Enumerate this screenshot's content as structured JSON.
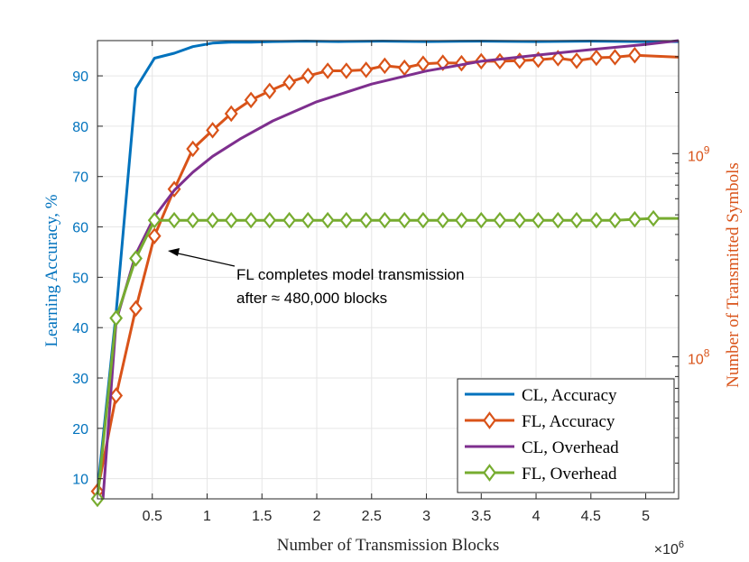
{
  "chart_data": {
    "type": "line",
    "title": "",
    "xlabel": "Number of Transmission Blocks",
    "x_multiplier_label": "×10",
    "x_multiplier_exp": "6",
    "ylabel_left": "Learning Accuracy, %",
    "ylabel_right": "Number of Transmitted Symbols",
    "xlim": [
      0,
      5.3
    ],
    "ylim_left": [
      6,
      97
    ],
    "ylim_right_log": [
      20000000.0,
      3600000000.0
    ],
    "x_ticks": [
      0.5,
      1,
      1.5,
      2,
      2.5,
      3,
      3.5,
      4,
      4.5,
      5
    ],
    "x_tick_labels": [
      "0.5",
      "1",
      "1.5",
      "2",
      "2.5",
      "3",
      "3.5",
      "4",
      "4.5",
      "5"
    ],
    "y_left_ticks": [
      10,
      20,
      30,
      40,
      50,
      60,
      70,
      80,
      90
    ],
    "y_left_tick_labels": [
      "10",
      "20",
      "30",
      "40",
      "50",
      "60",
      "70",
      "80",
      "90"
    ],
    "y_right_major_ticks": [
      100000000.0,
      1000000000.0
    ],
    "y_right_tick_bases": [
      "10",
      "10"
    ],
    "y_right_tick_exps": [
      "8",
      "9"
    ],
    "grid": true,
    "legend_position": "bottom-right",
    "series": [
      {
        "name": "CL, Accuracy",
        "axis": "left",
        "color": "#0072BD",
        "marker": "none",
        "x": [
          0,
          0.17,
          0.35,
          0.52,
          0.7,
          0.87,
          1.05,
          1.22,
          1.4,
          1.6,
          1.9,
          2.2,
          2.6,
          3,
          3.5,
          4,
          4.5,
          5,
          5.3
        ],
        "y": [
          7.5,
          43,
          87.5,
          93.5,
          94.5,
          95.8,
          96.5,
          96.7,
          96.7,
          96.8,
          96.9,
          96.8,
          96.9,
          96.8,
          96.9,
          96.8,
          96.9,
          96.8,
          96.8
        ]
      },
      {
        "name": "FL, Accuracy",
        "axis": "left",
        "color": "#D95319",
        "marker": "diamond",
        "x": [
          0,
          0.17,
          0.35,
          0.52,
          0.7,
          0.87,
          1.05,
          1.22,
          1.4,
          1.57,
          1.75,
          1.92,
          2.1,
          2.27,
          2.45,
          2.62,
          2.8,
          2.97,
          3.15,
          3.32,
          3.5,
          3.67,
          3.85,
          4.02,
          4.2,
          4.37,
          4.55,
          4.72,
          4.9,
          5.3
        ],
        "y": [
          7.5,
          26.5,
          43.8,
          58.2,
          67.5,
          75.5,
          79.2,
          82.5,
          85.2,
          87,
          88.7,
          90,
          91,
          91,
          91.2,
          92,
          91.6,
          92.4,
          92.6,
          92.5,
          92.9,
          92.9,
          93,
          93.2,
          93.5,
          93,
          93.6,
          93.7,
          94.1,
          93.7
        ],
        "marker_points": 29
      },
      {
        "name": "CL, Overhead",
        "axis": "right",
        "color": "#7E2F8E",
        "marker": "none",
        "x": [
          0.05,
          0.17,
          0.35,
          0.52,
          0.7,
          0.87,
          1.05,
          1.3,
          1.6,
          2,
          2.5,
          3,
          3.5,
          4,
          4.5,
          5,
          5.3
        ],
        "y": [
          20000000.0,
          150000000.0,
          320000000.0,
          490000000.0,
          660000000.0,
          810000000.0,
          970000000.0,
          1180000000.0,
          1450000000.0,
          1800000000.0,
          2200000000.0,
          2550000000.0,
          2850000000.0,
          3050000000.0,
          3250000000.0,
          3450000000.0,
          3600000000.0
        ]
      },
      {
        "name": "FL, Overhead",
        "axis": "right",
        "color": "#77AC30",
        "marker": "diamond",
        "x": [
          0,
          0.17,
          0.35,
          0.52,
          0.7,
          0.87,
          1.05,
          1.22,
          1.4,
          1.57,
          1.75,
          1.92,
          2.1,
          2.27,
          2.45,
          2.62,
          2.8,
          2.97,
          3.15,
          3.32,
          3.5,
          3.67,
          3.85,
          4.02,
          4.2,
          4.37,
          4.55,
          4.72,
          4.9,
          5.07,
          5.3
        ],
        "y": [
          20000000.0,
          155000000.0,
          305000000.0,
          470000000.0,
          470000000.0,
          470000000.0,
          470000000.0,
          470000000.0,
          470000000.0,
          470000000.0,
          470000000.0,
          470000000.0,
          470000000.0,
          470000000.0,
          470000000.0,
          470000000.0,
          470000000.0,
          470000000.0,
          470000000.0,
          470000000.0,
          470000000.0,
          470000000.0,
          470000000.0,
          470000000.0,
          470000000.0,
          470000000.0,
          470000000.0,
          470000000.0,
          475000000.0,
          480000000.0,
          480000000.0
        ],
        "marker_points": 30
      }
    ],
    "annotation": {
      "line1": "FL completes model transmission",
      "line2": "after ≈ 480,000 blocks",
      "arrow_to": [
        0.52,
        57
      ]
    }
  }
}
